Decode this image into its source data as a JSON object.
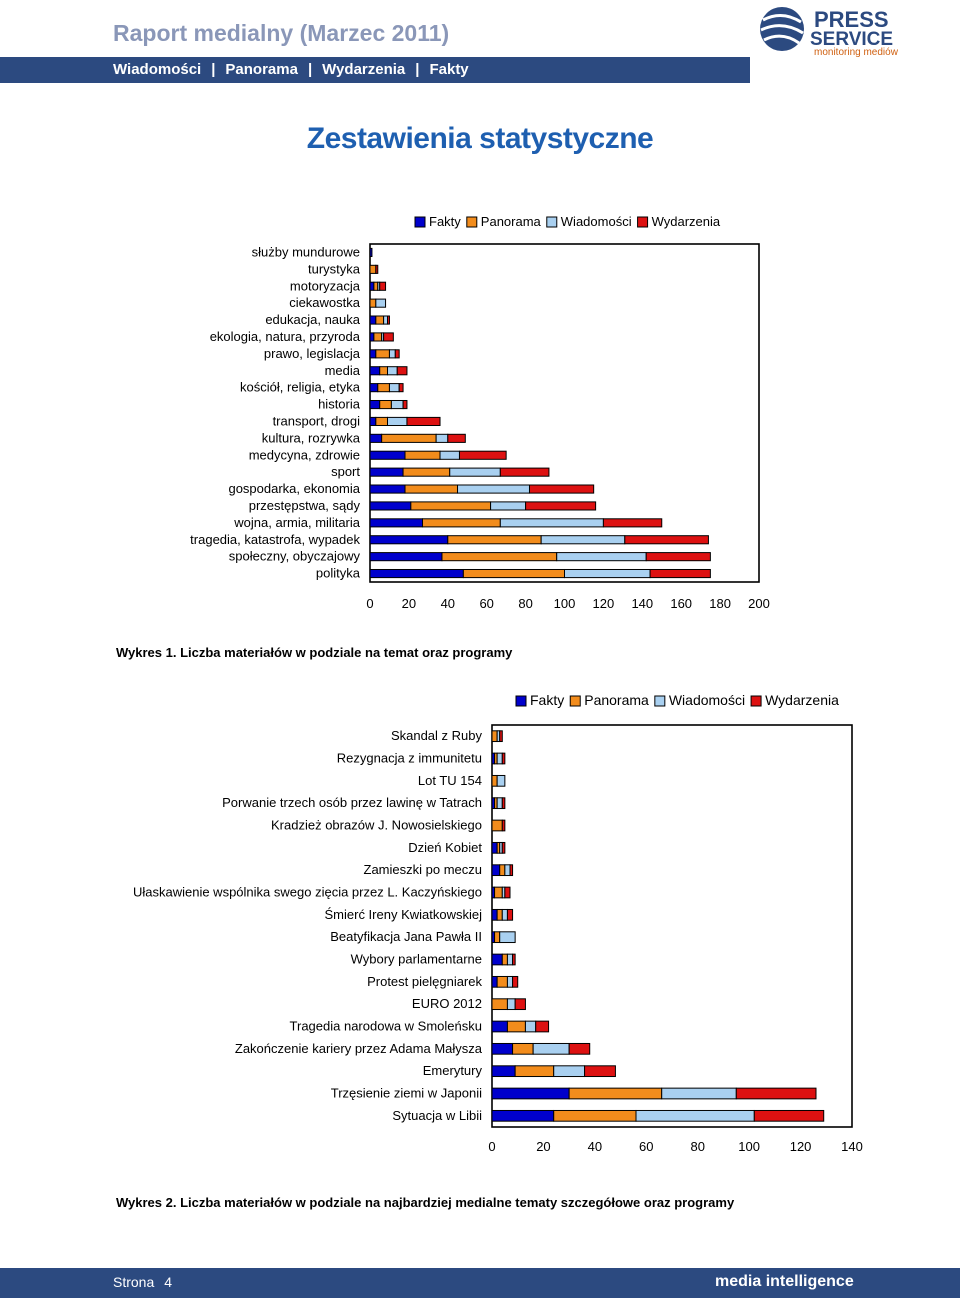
{
  "header": {
    "title": "Raport medialny (Marzec 2011)",
    "nav": [
      "Wiadomości",
      "Panorama",
      "Wydarzenia",
      "Fakty"
    ],
    "logo_line1": "PRESS",
    "logo_line2": "SERVICE",
    "logo_tagline": "monitoring mediów"
  },
  "section_title": "Zestawienia statystyczne",
  "colors": {
    "Fakty": "#0000cc",
    "Panorama": "#f28c1c",
    "Wiadomości": "#a9d0f0",
    "Wydarzenia": "#dd1111"
  },
  "chart_data": [
    {
      "type": "bar",
      "orientation": "horizontal",
      "stacked": true,
      "caption": "Wykres 1. Liczba materiałów w podziale na temat oraz programy",
      "legend_position": "top-right",
      "xlim": [
        0,
        200
      ],
      "xticks": [
        0,
        20,
        40,
        60,
        80,
        100,
        120,
        140,
        160,
        180,
        200
      ],
      "categories": [
        "służby mundurowe",
        "turystyka",
        "motoryzacja",
        "ciekawostka",
        "edukacja, nauka",
        "ekologia, natura, przyroda",
        "prawo, legislacja",
        "media",
        "kościół, religia, etyka",
        "historia",
        "transport, drogi",
        "kultura, rozrywka",
        "medycyna, zdrowie",
        "sport",
        "gospodarka, ekonomia",
        "przestępstwa, sądy",
        "wojna, armia, militaria",
        "tragedia, katastrofa, wypadek",
        "społeczny, obyczajowy",
        "polityka"
      ],
      "series": [
        {
          "name": "Fakty",
          "values": [
            1,
            0,
            2,
            0,
            3,
            2,
            3,
            5,
            4,
            5,
            3,
            6,
            18,
            17,
            18,
            21,
            27,
            40,
            37,
            48
          ]
        },
        {
          "name": "Panorama",
          "values": [
            0,
            3,
            2,
            3,
            4,
            4,
            7,
            4,
            6,
            6,
            6,
            28,
            18,
            24,
            27,
            41,
            40,
            48,
            59,
            52
          ]
        },
        {
          "name": "Wiadomości",
          "values": [
            0,
            0,
            1,
            5,
            2,
            1,
            3,
            5,
            5,
            6,
            10,
            6,
            10,
            26,
            37,
            18,
            53,
            43,
            46,
            44
          ]
        },
        {
          "name": "Wydarzenia",
          "values": [
            0,
            1,
            3,
            0,
            1,
            5,
            2,
            5,
            2,
            2,
            17,
            9,
            24,
            25,
            33,
            36,
            30,
            43,
            33,
            31
          ]
        }
      ]
    },
    {
      "type": "bar",
      "orientation": "horizontal",
      "stacked": true,
      "caption": "Wykres 2. Liczba materiałów w podziale na najbardziej medialne tematy szczegółowe oraz programy",
      "legend_position": "top-right",
      "xlim": [
        0,
        140
      ],
      "xticks": [
        0,
        20,
        40,
        60,
        80,
        100,
        120,
        140
      ],
      "categories": [
        "Skandal z Ruby",
        "Rezygnacja z immunitetu",
        "Lot TU 154",
        "Porwanie trzech osób przez lawinę w Tatrach",
        "Kradzież obrazów J. Nowosielskiego",
        "Dzień Kobiet",
        "Zamieszki po meczu",
        "Ułaskawienie wspólnika swego zięcia przez L. Kaczyńskiego",
        "Śmierć Ireny Kwiatkowskiej",
        "Beatyfikacja Jana Pawła II",
        "Wybory parlamentarne",
        "Protest pielęgniarek",
        "EURO 2012",
        "Tragedia narodowa w Smoleńsku",
        "Zakończenie kariery przez Adama Małysza",
        "Emerytury",
        "Trzęsienie ziemi w Japonii",
        "Sytuacja w Libii"
      ],
      "series": [
        {
          "name": "Fakty",
          "values": [
            0,
            1,
            0,
            1,
            0,
            2,
            3,
            1,
            2,
            1,
            4,
            2,
            0,
            6,
            8,
            9,
            30,
            24
          ]
        },
        {
          "name": "Panorama",
          "values": [
            2,
            1,
            2,
            1,
            4,
            1,
            2,
            3,
            2,
            2,
            2,
            4,
            6,
            7,
            8,
            15,
            36,
            32
          ]
        },
        {
          "name": "Wiadomości",
          "values": [
            1,
            2,
            3,
            2,
            0,
            1,
            2,
            1,
            2,
            6,
            2,
            2,
            3,
            4,
            14,
            12,
            29,
            46
          ]
        },
        {
          "name": "Wydarzenia",
          "values": [
            1,
            1,
            0,
            1,
            1,
            1,
            1,
            2,
            2,
            0,
            1,
            2,
            4,
            5,
            8,
            12,
            31,
            27
          ]
        }
      ]
    }
  ],
  "footer": {
    "page_label": "Strona",
    "page_number": "4",
    "brand": "media intelligence"
  }
}
